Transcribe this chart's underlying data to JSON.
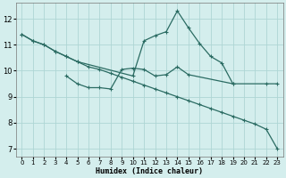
{
  "xlabel": "Humidex (Indice chaleur)",
  "bg_color": "#d4eeed",
  "grid_color": "#aed6d4",
  "line_color": "#2a6b62",
  "xlim": [
    -0.5,
    23.5
  ],
  "ylim": [
    6.7,
    12.6
  ],
  "yticks": [
    7,
    8,
    9,
    10,
    11,
    12
  ],
  "xticks": [
    0,
    1,
    2,
    3,
    4,
    5,
    6,
    7,
    8,
    9,
    10,
    11,
    12,
    13,
    14,
    15,
    16,
    17,
    18,
    19,
    20,
    21,
    22,
    23
  ],
  "line1_x": [
    0,
    1,
    2,
    3,
    4,
    5,
    6,
    7,
    8,
    9,
    10,
    11,
    12,
    13,
    14,
    15,
    16,
    17,
    18,
    19,
    20,
    21,
    22,
    23
  ],
  "line1_y": [
    11.4,
    11.15,
    11.0,
    10.75,
    10.55,
    10.35,
    10.15,
    10.05,
    9.9,
    9.75,
    9.6,
    9.45,
    9.3,
    9.15,
    9.0,
    8.85,
    8.7,
    8.55,
    8.4,
    8.25,
    8.1,
    7.95,
    7.75,
    7.0
  ],
  "line2_x": [
    0,
    1,
    2,
    3,
    4,
    5,
    10,
    11,
    12,
    13,
    14,
    15,
    16,
    17,
    18,
    19,
    22,
    23
  ],
  "line2_y": [
    11.4,
    11.15,
    11.0,
    10.75,
    10.55,
    10.35,
    9.8,
    11.15,
    11.35,
    11.5,
    12.3,
    11.65,
    11.05,
    10.55,
    10.3,
    9.5,
    9.5,
    9.5
  ],
  "line3_x": [
    4,
    5,
    6,
    7,
    8,
    9,
    10,
    11,
    12,
    13,
    14,
    15,
    19
  ],
  "line3_y": [
    9.8,
    9.5,
    9.35,
    9.35,
    9.3,
    10.05,
    10.1,
    10.05,
    9.8,
    9.85,
    10.15,
    9.85,
    9.5
  ],
  "marker_size": 2.5
}
